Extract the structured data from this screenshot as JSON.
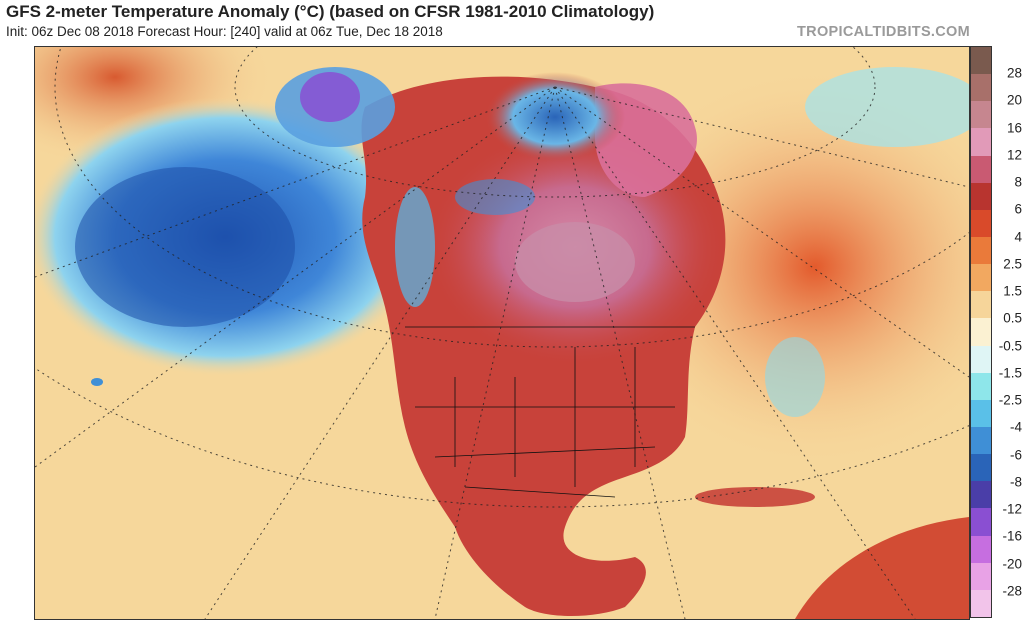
{
  "title": "GFS 2-meter Temperature Anomaly (°C) (based on CFSR 1981-2010 Climatology)",
  "subtitle": "Init: 06z Dec 08 2018   Forecast Hour: [240]   valid at 06z Tue, Dec 18 2018",
  "source": "TROPICALTIDBITS.COM",
  "colorbar": {
    "labels": [
      "28",
      "20",
      "16",
      "12",
      "8",
      "6",
      "4",
      "2.5",
      "1.5",
      "0.5",
      "-0.5",
      "-1.5",
      "-2.5",
      "-4",
      "-6",
      "-8",
      "-12",
      "-16",
      "-20",
      "-28"
    ],
    "colors": [
      "#7a5a4e",
      "#a8706a",
      "#c6868f",
      "#e19ab8",
      "#c95a72",
      "#b8342f",
      "#d94a2a",
      "#ea7a3a",
      "#f2a860",
      "#f6d59a",
      "#fbf1d2",
      "#dff5f5",
      "#8ee6ea",
      "#5ac0e8",
      "#3f8fd6",
      "#2a64b8",
      "#4a3ea8",
      "#8a4fd2",
      "#c66ee0",
      "#e8a2e6",
      "#f2c4ea"
    ]
  },
  "map": {
    "land_color": "#c8423a",
    "ocean_warm": "#f6d79b",
    "cold_pacific": "#2e6fcc",
    "cold_arctic": "#5ea3e0",
    "warm_canada": "#d977a8"
  }
}
